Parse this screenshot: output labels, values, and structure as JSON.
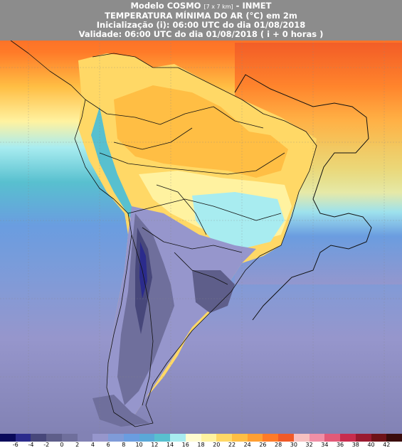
{
  "header": {
    "model_name": "Modelo COSMO",
    "model_resolution": "[7 x 7 km]",
    "institution": "INMET",
    "variable": "TEMPERATURA MÍNIMA DO AR (°C) em 2m",
    "initialization": "Inicialização (i): 06:00 UTC do dia 01/08/2018",
    "validity": "Validade: 06:00 UTC do dia 01/08/2018 ( i + 0 horas )"
  },
  "colorbar": {
    "colors": [
      "#0a0a5a",
      "#2b2b8c",
      "#47477a",
      "#5e5e8a",
      "#6f6f9c",
      "#8282b4",
      "#9696cc",
      "#7f9bd8",
      "#6a9de0",
      "#5aa8d8",
      "#58c0cf",
      "#a8ecf0",
      "#fffbd0",
      "#fff2a0",
      "#ffd866",
      "#ffbe44",
      "#ff9f33",
      "#ff7a28",
      "#f05a28",
      "#f7c0c0",
      "#f08fa6",
      "#e25a78",
      "#c82c4e",
      "#9a1a30",
      "#6e1218",
      "#3a0c0c"
    ],
    "ticks": [
      "-6",
      "-4",
      "-2",
      "0",
      "2",
      "4",
      "6",
      "8",
      "10",
      "12",
      "14",
      "16",
      "18",
      "20",
      "22",
      "24",
      "26",
      "28",
      "30",
      "32",
      "34",
      "36",
      "38",
      "40",
      "42"
    ]
  }
}
